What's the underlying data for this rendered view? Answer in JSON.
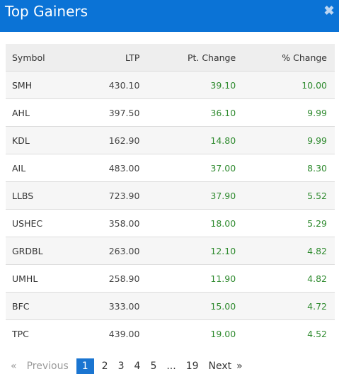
{
  "header": {
    "title": "Top Gainers",
    "close_icon": "close-icon",
    "accent_color": "#0b73d6"
  },
  "table": {
    "columns": [
      "Symbol",
      "LTP",
      "Pt. Change",
      "% Change"
    ],
    "rows": [
      {
        "symbol": "SMH",
        "ltp": "430.10",
        "pt_change": "39.10",
        "pct_change": "10.00"
      },
      {
        "symbol": "AHL",
        "ltp": "397.50",
        "pt_change": "36.10",
        "pct_change": "9.99"
      },
      {
        "symbol": "KDL",
        "ltp": "162.90",
        "pt_change": "14.80",
        "pct_change": "9.99"
      },
      {
        "symbol": "AIL",
        "ltp": "483.00",
        "pt_change": "37.00",
        "pct_change": "8.30"
      },
      {
        "symbol": "LLBS",
        "ltp": "723.90",
        "pt_change": "37.90",
        "pct_change": "5.52"
      },
      {
        "symbol": "USHEC",
        "ltp": "358.00",
        "pt_change": "18.00",
        "pct_change": "5.29"
      },
      {
        "symbol": "GRDBL",
        "ltp": "263.00",
        "pt_change": "12.10",
        "pct_change": "4.82"
      },
      {
        "symbol": "UMHL",
        "ltp": "258.90",
        "pt_change": "11.90",
        "pct_change": "4.82"
      },
      {
        "symbol": "BFC",
        "ltp": "333.00",
        "pt_change": "15.00",
        "pct_change": "4.72"
      },
      {
        "symbol": "TPC",
        "ltp": "439.00",
        "pt_change": "19.00",
        "pct_change": "4.52"
      }
    ],
    "positive_color": "#2e8a2e"
  },
  "pagination": {
    "prev_glyph": "«",
    "previous_label": "Previous",
    "pages": [
      "1",
      "2",
      "3",
      "4",
      "5"
    ],
    "ellipsis": "...",
    "last_page": "19",
    "next_label": "Next",
    "next_glyph": "»",
    "current_page": "1"
  }
}
